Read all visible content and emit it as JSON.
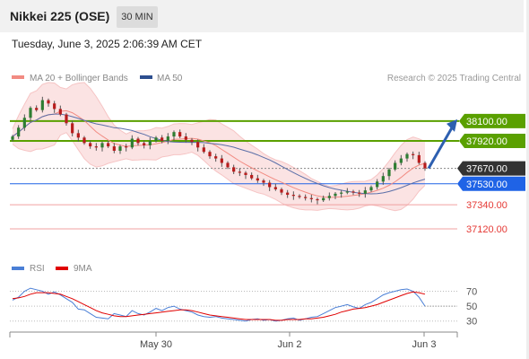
{
  "header": {
    "title": "Nikkei 225 (OSE)",
    "timeframe": "30 MIN",
    "timestamp": "Tuesday, June 3, 2025 2:06:39 AM CET"
  },
  "chart_data": {
    "type": "candlestick",
    "ylim": [
      36900,
      38450
    ],
    "legend": [
      {
        "name": "MA 20 + Bollinger Bands",
        "color": "#f28b82"
      },
      {
        "name": "MA 50",
        "color": "#2d4f8f"
      }
    ],
    "credit": "Research © 2025 Trading Central",
    "levels": [
      {
        "label": "38100.00",
        "value": 38100,
        "color": "#5aa000",
        "style": "box"
      },
      {
        "label": "37920.00",
        "value": 37920,
        "color": "#5aa000",
        "style": "box"
      },
      {
        "label": "37670.00",
        "value": 37670,
        "color": "#333333",
        "style": "box"
      },
      {
        "label": "37530.00",
        "value": 37530,
        "color": "#1f63e6",
        "style": "box"
      },
      {
        "label": "37340.00",
        "value": 37340,
        "color": "#e53935",
        "style": "text"
      },
      {
        "label": "37120.00",
        "value": 37120,
        "color": "#e53935",
        "style": "text"
      }
    ],
    "close_series": [
      37960,
      38040,
      38130,
      38220,
      38200,
      38290,
      38260,
      38210,
      38160,
      38080,
      37990,
      37950,
      37900,
      37870,
      37860,
      37900,
      37870,
      37830,
      37870,
      37860,
      37940,
      37900,
      37880,
      37920,
      37950,
      37920,
      37960,
      38000,
      37960,
      37930,
      37910,
      37860,
      37820,
      37780,
      37760,
      37720,
      37680,
      37640,
      37630,
      37610,
      37580,
      37560,
      37540,
      37500,
      37480,
      37450,
      37430,
      37420,
      37410,
      37400,
      37390,
      37380,
      37400,
      37420,
      37440,
      37450,
      37460,
      37450,
      37440,
      37470,
      37500,
      37550,
      37600,
      37660,
      37720,
      37760,
      37800,
      37790,
      37720,
      37670
    ],
    "rsi": {
      "name": "RSI",
      "color": "#4a7fd6",
      "ma_name": "9MA",
      "ma_color": "#e00000",
      "levels": [
        70,
        50,
        30
      ],
      "ylim": [
        20,
        85
      ],
      "values": [
        58,
        62,
        70,
        74,
        72,
        70,
        66,
        69,
        65,
        60,
        55,
        46,
        45,
        40,
        35,
        34,
        33,
        40,
        38,
        36,
        44,
        40,
        38,
        42,
        47,
        44,
        48,
        50,
        46,
        44,
        42,
        38,
        36,
        35,
        36,
        34,
        33,
        32,
        31,
        30,
        32,
        33,
        31,
        32,
        30,
        31,
        33,
        34,
        31,
        33,
        35,
        36,
        40,
        44,
        48,
        50,
        52,
        49,
        47,
        52,
        55,
        60,
        65,
        68,
        70,
        72,
        73,
        70,
        62,
        50
      ],
      "ma": [
        60,
        61,
        63,
        66,
        68,
        68,
        68,
        67,
        66,
        63,
        60,
        56,
        52,
        48,
        44,
        41,
        39,
        37,
        36,
        36,
        37,
        38,
        39,
        40,
        41,
        42,
        43,
        44,
        45,
        45,
        44,
        42,
        40,
        38,
        37,
        36,
        35,
        34,
        33,
        32,
        32,
        32,
        32,
        32,
        31,
        31,
        32,
        32,
        32,
        33,
        33,
        34,
        35,
        37,
        39,
        42,
        44,
        46,
        47,
        48,
        50,
        52,
        55,
        58,
        61,
        64,
        67,
        69,
        68,
        66
      ]
    },
    "x_ticks": [
      "May 30",
      "Jun 2",
      "Jun 3"
    ]
  }
}
